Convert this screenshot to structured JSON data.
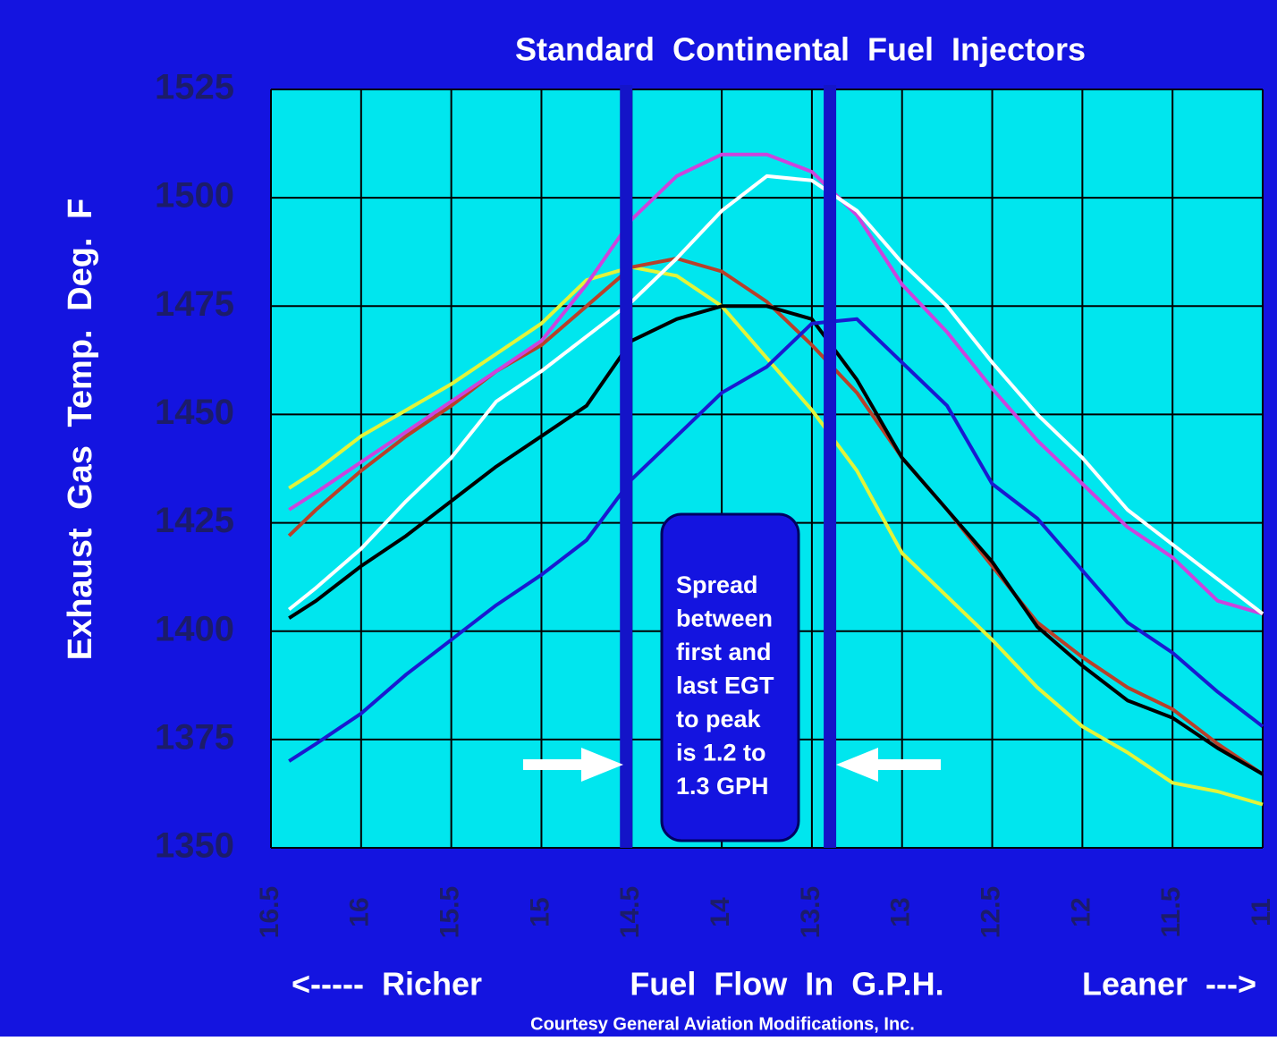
{
  "chart_data": {
    "type": "line",
    "title": "Standard Continental Fuel Injectors",
    "y_label": "Exhaust Gas Temp. Deg. F",
    "x_labels": [
      "<----- Richer",
      "Fuel Flow In G.P.H.",
      "Leaner --->"
    ],
    "credit": "Courtesy General Aviation Modifications, Inc.",
    "annotation": [
      "Spread",
      "between",
      "first and",
      "last EGT",
      "to peak",
      "is 1.2 to",
      "1.3 GPH"
    ],
    "x": [
      16.4,
      16.25,
      16,
      15.75,
      15.5,
      15.25,
      15,
      14.75,
      14.5,
      14.25,
      14,
      13.75,
      13.5,
      13.25,
      13,
      12.75,
      12.5,
      12.25,
      12,
      11.75,
      11.5,
      11.25,
      11
    ],
    "series": [
      {
        "color": "#e2f43a",
        "values": [
          1433,
          1437,
          1445,
          1451,
          1457,
          1464,
          1471,
          1481,
          1484,
          1482,
          1475,
          1463,
          1451,
          1437,
          1418,
          1408,
          1398,
          1387,
          1378,
          1372,
          1365,
          1363,
          1360
        ]
      },
      {
        "color": "#b8402a",
        "values": [
          1422,
          1428,
          1437,
          1445,
          1452,
          1460,
          1466,
          1475,
          1484,
          1486,
          1483,
          1476,
          1466,
          1455,
          1440,
          1428,
          1415,
          1402,
          1394,
          1387,
          1382,
          1374,
          1367
        ]
      },
      {
        "color": "#cc44dd",
        "values": [
          1428,
          1432,
          1439,
          1446,
          1453,
          1460,
          1467,
          1480,
          1495,
          1505,
          1510,
          1510,
          1506,
          1496,
          1480,
          1469,
          1456,
          1444,
          1434,
          1424,
          1417,
          1407,
          1404
        ]
      },
      {
        "color": "#ffffff",
        "values": [
          1405,
          1410,
          1419,
          1430,
          1440,
          1453,
          1460,
          1468,
          1476,
          1486,
          1497,
          1505,
          1504,
          1497,
          1485,
          1475,
          1462,
          1450,
          1440,
          1428,
          1420,
          1412,
          1404
        ]
      },
      {
        "color": "#000000",
        "values": [
          1403,
          1407,
          1415,
          1422,
          1430,
          1438,
          1445,
          1452,
          1467,
          1472,
          1475,
          1475,
          1472,
          1458,
          1440,
          1428,
          1416,
          1401,
          1392,
          1384,
          1380,
          1373,
          1367
        ]
      },
      {
        "color": "#1a1ad0",
        "values": [
          1370,
          1374,
          1381,
          1390,
          1398,
          1406,
          1413,
          1421,
          1435,
          1445,
          1455,
          1461,
          1471,
          1472,
          1462,
          1452,
          1434,
          1426,
          1414,
          1402,
          1395,
          1386,
          1378
        ]
      }
    ],
    "vlines": [
      14.53,
      13.4
    ],
    "xlim": [
      16.5,
      11
    ],
    "ylim": [
      1350,
      1525
    ],
    "xticks": [
      16.5,
      16,
      15.5,
      15,
      14.5,
      14,
      13.5,
      13,
      12.5,
      12,
      11.5,
      11
    ],
    "yticks": [
      1350,
      1375,
      1400,
      1425,
      1450,
      1475,
      1500,
      1525
    ],
    "grid": true,
    "plot_color": "#00e6ee",
    "background": "#1414e0"
  }
}
